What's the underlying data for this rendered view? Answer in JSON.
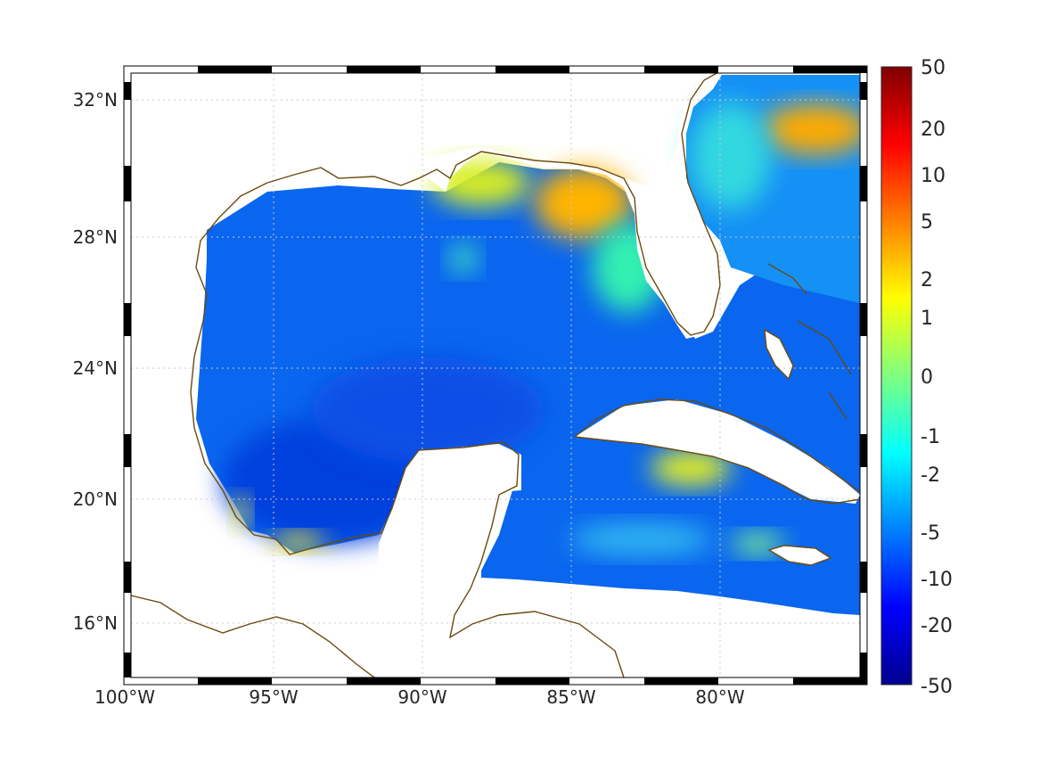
{
  "chart_data": {
    "type": "heatmap",
    "title": "",
    "projection": "lat-lon map of Gulf of Mexico and Caribbean",
    "lon_range": [
      -100,
      -75
    ],
    "lat_range": [
      14.5,
      33
    ],
    "lon_ticks": [
      "100°W",
      "95°W",
      "90°W",
      "85°W",
      "80°W"
    ],
    "lat_ticks": [
      "32°N",
      "28°N",
      "24°N",
      "20°N",
      "16°N"
    ],
    "colorbar": {
      "ticks": [
        "50",
        "20",
        "10",
        "5",
        "2",
        "1",
        "0",
        "-1",
        "-2",
        "-5",
        "-10",
        "-20",
        "-50"
      ],
      "colormap": "jet",
      "range": [
        -50,
        50
      ]
    },
    "grid": "dotted",
    "field_features": [
      {
        "region": "open Gulf of Mexico",
        "value_approx": -8
      },
      {
        "region": "Bay of Campeche center",
        "value_approx": -12
      },
      {
        "region": "Louisiana / Mississippi delta coast",
        "value_approx": 1.5
      },
      {
        "region": "Florida Big Bend / Apalachee Bay",
        "value_approx": 4
      },
      {
        "region": "Atlantic off Georgia / South Carolina",
        "value_approx": 3
      },
      {
        "region": "South Cuba shelf (Gulf of Batabano)",
        "value_approx": 1.5
      },
      {
        "region": "Caribbean Sea",
        "value_approx": -5
      }
    ]
  },
  "colors": {
    "coastline": "#6b4a10",
    "grid": "#c8c8c8",
    "frame": "#000000"
  }
}
